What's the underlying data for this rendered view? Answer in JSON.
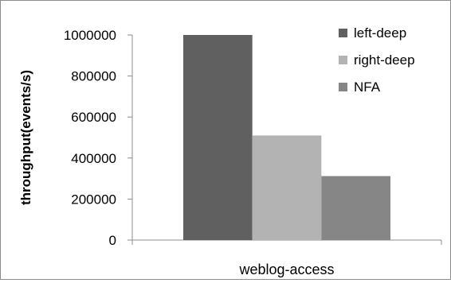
{
  "chart_data": {
    "type": "bar",
    "categories": [
      "weblog-access"
    ],
    "series": [
      {
        "name": "left-deep",
        "values": [
          1000000
        ],
        "color": "#606060"
      },
      {
        "name": "right-deep",
        "values": [
          510000
        ],
        "color": "#b3b3b3"
      },
      {
        "name": "NFA",
        "values": [
          312000
        ],
        "color": "#868686"
      }
    ],
    "title": "",
    "xlabel": "",
    "ylabel": "throughput(events/s)",
    "ylim": [
      0,
      1000000
    ],
    "yticks": [
      "0",
      "200000",
      "400000",
      "600000",
      "800000",
      "1000000"
    ],
    "grid": false,
    "legend_position": "top-right"
  }
}
